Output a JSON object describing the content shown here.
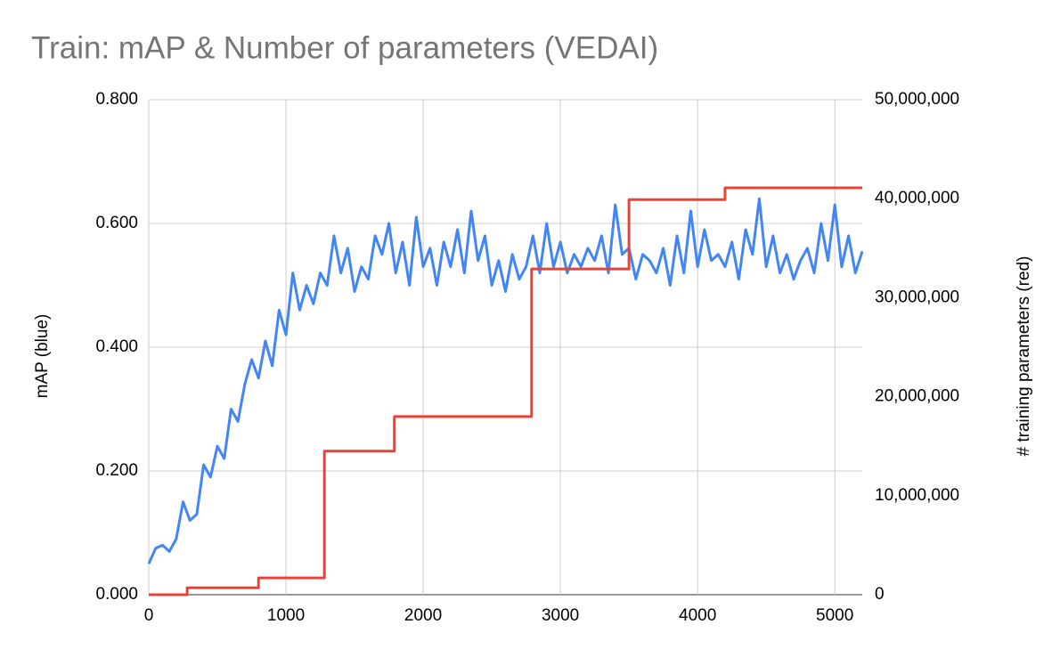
{
  "chart_data": {
    "type": "line",
    "title": "Train: mAP & Number of parameters (VEDAI)",
    "ylabel": "mAP (blue)",
    "y2label": "# training parameters (red)",
    "xlim": [
      0,
      5200
    ],
    "xticks": [
      0,
      1000,
      2000,
      3000,
      4000,
      5000
    ],
    "ylim": [
      0,
      0.8
    ],
    "yticks": [
      {
        "value": 0,
        "label": "0.000"
      },
      {
        "value": 0.2,
        "label": "0.200"
      },
      {
        "value": 0.4,
        "label": "0.400"
      },
      {
        "value": 0.6,
        "label": "0.600"
      },
      {
        "value": 0.8,
        "label": "0.800"
      }
    ],
    "y2lim": [
      0,
      50000000
    ],
    "y2ticks": [
      0,
      {
        "value": 10000000,
        "label": "10,000,000"
      },
      {
        "value": 20000000,
        "label": "20,000,000"
      },
      {
        "value": 30000000,
        "label": "30,000,000"
      },
      {
        "value": 40000000,
        "label": "40,000,000"
      },
      {
        "value": 50000000,
        "label": "50,000,000"
      }
    ],
    "grid": true,
    "series": [
      {
        "name": "mAP",
        "color": "#4285f4",
        "x": [
          0,
          50,
          100,
          150,
          200,
          250,
          300,
          350,
          400,
          450,
          500,
          550,
          600,
          650,
          700,
          750,
          800,
          850,
          900,
          950,
          1000,
          1050,
          1100,
          1150,
          1200,
          1250,
          1300,
          1350,
          1400,
          1450,
          1500,
          1550,
          1600,
          1650,
          1700,
          1750,
          1800,
          1850,
          1900,
          1950,
          2000,
          2050,
          2100,
          2150,
          2200,
          2250,
          2300,
          2350,
          2400,
          2450,
          2500,
          2550,
          2600,
          2650,
          2700,
          2750,
          2800,
          2850,
          2900,
          2950,
          3000,
          3050,
          3100,
          3150,
          3200,
          3250,
          3300,
          3350,
          3400,
          3450,
          3500,
          3550,
          3600,
          3650,
          3700,
          3750,
          3800,
          3850,
          3900,
          3950,
          4000,
          4050,
          4100,
          4150,
          4200,
          4250,
          4300,
          4350,
          4400,
          4450,
          4500,
          4550,
          4600,
          4650,
          4700,
          4750,
          4800,
          4850,
          4900,
          4950,
          5000,
          5050,
          5100,
          5150,
          5200
        ],
        "values": [
          0.05,
          0.075,
          0.08,
          0.07,
          0.09,
          0.15,
          0.12,
          0.13,
          0.21,
          0.19,
          0.24,
          0.22,
          0.3,
          0.28,
          0.34,
          0.38,
          0.35,
          0.41,
          0.37,
          0.46,
          0.42,
          0.52,
          0.46,
          0.5,
          0.47,
          0.52,
          0.5,
          0.58,
          0.52,
          0.56,
          0.49,
          0.53,
          0.51,
          0.58,
          0.55,
          0.6,
          0.52,
          0.57,
          0.5,
          0.61,
          0.53,
          0.56,
          0.5,
          0.57,
          0.53,
          0.59,
          0.52,
          0.62,
          0.54,
          0.58,
          0.5,
          0.54,
          0.49,
          0.55,
          0.51,
          0.53,
          0.58,
          0.52,
          0.6,
          0.53,
          0.57,
          0.52,
          0.55,
          0.53,
          0.56,
          0.54,
          0.58,
          0.52,
          0.63,
          0.55,
          0.56,
          0.51,
          0.55,
          0.54,
          0.52,
          0.56,
          0.5,
          0.58,
          0.52,
          0.62,
          0.53,
          0.59,
          0.54,
          0.55,
          0.53,
          0.57,
          0.51,
          0.59,
          0.55,
          0.64,
          0.53,
          0.58,
          0.52,
          0.55,
          0.51,
          0.54,
          0.56,
          0.52,
          0.6,
          0.54,
          0.63,
          0.53,
          0.58,
          0.52,
          0.555
        ]
      },
      {
        "name": "# training parameters",
        "color": "#ea4335",
        "axis": "y2",
        "x": [
          0,
          280,
          280,
          800,
          800,
          1280,
          1280,
          1790,
          1790,
          2790,
          2790,
          3500,
          3500,
          4200,
          4200,
          5200
        ],
        "values": [
          0,
          0,
          700000,
          700000,
          1700000,
          1700000,
          14500000,
          14500000,
          18000000,
          18000000,
          32900000,
          32900000,
          39900000,
          39900000,
          41100000,
          41100000
        ]
      }
    ]
  }
}
